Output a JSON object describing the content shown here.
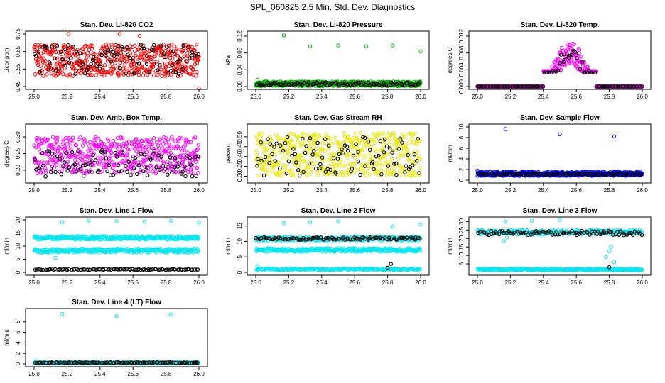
{
  "figure": {
    "title": "SPL_060825  2.5 Min. Std. Dev. Diagnostics"
  },
  "chart_data": [
    {
      "type": "scatter",
      "title": "Stan. Dev. Li-820 CO2",
      "ylabel": "Licor ppm",
      "xlim": [
        25.0,
        26.0
      ],
      "ylim": [
        0.45,
        0.75
      ],
      "xticks": [
        "25.0",
        "25.2",
        "25.4",
        "25.6",
        "25.8",
        "26.0"
      ],
      "yticks": [
        "0.45",
        "0.55",
        "0.65",
        "0.75"
      ],
      "ytick_values": [
        0.45,
        0.55,
        0.65,
        0.75
      ],
      "series": [
        {
          "name": "primary",
          "color": "#ff0000",
          "pattern": "band",
          "lo": 0.51,
          "hi": 0.69,
          "count": 520
        },
        {
          "name": "primary-outliers",
          "color": "#ff0000",
          "pattern": "points",
          "x": [
            25.21,
            25.52,
            25.64,
            26.0
          ],
          "y": [
            0.75,
            0.75,
            0.74,
            0.44
          ]
        },
        {
          "name": "secondary",
          "color": "#000000",
          "pattern": "band",
          "lo": 0.52,
          "hi": 0.69,
          "count": 95
        }
      ]
    },
    {
      "type": "scatter",
      "title": "Stan. Dev. Li-820 Pressure",
      "ylabel": "kPa",
      "xlim": [
        25.0,
        26.0
      ],
      "ylim": [
        0.0,
        0.125
      ],
      "xticks": [
        "25.0",
        "25.2",
        "25.4",
        "25.6",
        "25.8",
        "26.0"
      ],
      "yticks": [
        "0.00",
        "0.04",
        "0.08",
        "0.12"
      ],
      "ytick_values": [
        0.0,
        0.04,
        0.08,
        0.12
      ],
      "series": [
        {
          "name": "primary",
          "color": "#00b000",
          "pattern": "band",
          "lo": 0.001,
          "hi": 0.012,
          "count": 520
        },
        {
          "name": "primary-outliers",
          "color": "#00b000",
          "pattern": "points",
          "x": [
            25.01,
            25.17,
            25.33,
            25.5,
            25.67,
            25.83,
            26.0
          ],
          "y": [
            0.016,
            0.122,
            0.096,
            0.098,
            0.096,
            0.098,
            0.084
          ]
        },
        {
          "name": "secondary",
          "color": "#000000",
          "pattern": "band",
          "lo": 0.002,
          "hi": 0.01,
          "count": 95
        }
      ]
    },
    {
      "type": "scatter",
      "title": "Stan. Dev. Li-820 Temp.",
      "ylabel": "degrees C",
      "xlim": [
        25.0,
        26.0
      ],
      "ylim": [
        0.0,
        0.0125
      ],
      "xticks": [
        "25.0",
        "25.2",
        "25.4",
        "25.6",
        "25.8",
        "26.0"
      ],
      "yticks": [
        "0.000",
        "0.004",
        "0.008",
        "0.012"
      ],
      "ytick_values": [
        0.0,
        0.004,
        0.008,
        0.012
      ],
      "series": [
        {
          "name": "primary",
          "color": "#ff00ff",
          "pattern": "hump",
          "lo": 0.0,
          "hi": 0.0105,
          "start": 25.4,
          "end": 25.72,
          "count": 520
        },
        {
          "name": "secondary",
          "color": "#000000",
          "pattern": "hump",
          "lo": 0.0,
          "hi": 0.0095,
          "start": 25.4,
          "end": 25.72,
          "count": 95
        }
      ]
    },
    {
      "type": "scatter",
      "title": "Stan. Dev. Amb. Box Temp.",
      "ylabel": "degrees C",
      "xlim": [
        25.0,
        26.0
      ],
      "ylim": [
        0.17,
        0.33
      ],
      "xticks": [
        "25.0",
        "25.2",
        "25.4",
        "25.6",
        "25.8",
        "26.0"
      ],
      "yticks": [
        "0.20",
        "0.25",
        "0.30"
      ],
      "ytick_values": [
        0.2,
        0.25,
        0.3
      ],
      "series": [
        {
          "name": "primary",
          "color": "#ff00ff",
          "pattern": "band",
          "lo": 0.19,
          "hi": 0.3,
          "count": 520
        },
        {
          "name": "secondary",
          "color": "#000000",
          "pattern": "band",
          "lo": 0.18,
          "hi": 0.26,
          "count": 95
        }
      ]
    },
    {
      "type": "scatter",
      "title": "Stan. Dev. Gas Stream RH",
      "ylabel": "percent",
      "xlim": [
        25.0,
        26.0
      ],
      "ylim": [
        0.28,
        0.55
      ],
      "xticks": [
        "25.0",
        "25.2",
        "25.4",
        "25.6",
        "25.8",
        "26.0"
      ],
      "yticks": [
        "0.30",
        "0.35",
        "0.40",
        "0.45",
        "0.50"
      ],
      "ytick_values": [
        0.3,
        0.35,
        0.4,
        0.45,
        0.5
      ],
      "series": [
        {
          "name": "primary",
          "color": "#e8e800",
          "pattern": "band",
          "lo": 0.3,
          "hi": 0.52,
          "count": 520
        },
        {
          "name": "secondary",
          "color": "#000000",
          "pattern": "band",
          "lo": 0.3,
          "hi": 0.5,
          "count": 95
        }
      ]
    },
    {
      "type": "scatter",
      "title": "Stan. Dev. Sample Flow",
      "ylabel": "ml/min",
      "xlim": [
        25.0,
        26.0
      ],
      "ylim": [
        0,
        10
      ],
      "xticks": [
        "25.0",
        "25.2",
        "25.4",
        "25.6",
        "25.8",
        "26.0"
      ],
      "yticks": [
        "0",
        "2",
        "4",
        "6",
        "8",
        "10"
      ],
      "ytick_values": [
        0,
        2,
        4,
        6,
        8,
        10
      ],
      "series": [
        {
          "name": "primary",
          "color": "#0000ff",
          "pattern": "band",
          "lo": 0.8,
          "hi": 1.6,
          "count": 520
        },
        {
          "name": "primary-outliers",
          "color": "#0000ff",
          "pattern": "points",
          "x": [
            25.0,
            25.17,
            25.5,
            25.83
          ],
          "y": [
            1.8,
            9.6,
            8.6,
            8.2
          ]
        },
        {
          "name": "secondary",
          "color": "#000000",
          "pattern": "band",
          "lo": 0.9,
          "hi": 1.4,
          "count": 95
        }
      ]
    },
    {
      "type": "scatter",
      "title": "Stan. Dev. Line 1 Flow",
      "ylabel": "ml/min",
      "xlim": [
        25.0,
        26.0
      ],
      "ylim": [
        0,
        20
      ],
      "xticks": [
        "25.0",
        "25.2",
        "25.4",
        "25.6",
        "25.8",
        "26.0"
      ],
      "yticks": [
        "0",
        "5",
        "10",
        "15",
        "20"
      ],
      "ytick_values": [
        0,
        5,
        10,
        15,
        20
      ],
      "series": [
        {
          "name": "primary-upper",
          "color": "#00e5ee",
          "pattern": "band",
          "lo": 12.5,
          "hi": 13.8,
          "count": 300
        },
        {
          "name": "primary-middle",
          "color": "#00e5ee",
          "pattern": "band",
          "lo": 7.5,
          "hi": 9.0,
          "count": 300
        },
        {
          "name": "primary-outliers",
          "color": "#00e5ee",
          "pattern": "points",
          "x": [
            25.17,
            25.33,
            25.5,
            25.67,
            25.83,
            26.0,
            25.13
          ],
          "y": [
            19.2,
            19.7,
            19.5,
            19.3,
            19.6,
            19.0,
            5.5
          ]
        },
        {
          "name": "secondary",
          "color": "#000000",
          "pattern": "band",
          "lo": 0.9,
          "hi": 1.3,
          "count": 95
        }
      ]
    },
    {
      "type": "scatter",
      "title": "Stan. Dev. Line 2 Flow",
      "ylabel": "ml/min",
      "xlim": [
        25.0,
        26.0
      ],
      "ylim": [
        0,
        17
      ],
      "xticks": [
        "25.0",
        "25.2",
        "25.4",
        "25.6",
        "25.8",
        "26.0"
      ],
      "yticks": [
        "0",
        "5",
        "10",
        "15"
      ],
      "ytick_values": [
        0,
        5,
        10,
        15
      ],
      "series": [
        {
          "name": "primary-upper",
          "color": "#00e5ee",
          "pattern": "band",
          "lo": 10.3,
          "hi": 11.6,
          "count": 300
        },
        {
          "name": "primary-middle",
          "color": "#00e5ee",
          "pattern": "band",
          "lo": 6.7,
          "hi": 7.8,
          "count": 300
        },
        {
          "name": "primary-lower",
          "color": "#00e5ee",
          "pattern": "band",
          "lo": 0.7,
          "hi": 1.3,
          "count": 200
        },
        {
          "name": "primary-outliers",
          "color": "#00e5ee",
          "pattern": "points",
          "x": [
            25.01,
            25.17,
            25.33,
            25.5,
            25.83,
            26.0
          ],
          "y": [
            2.0,
            16.0,
            16.3,
            16.5,
            14.8,
            15.5
          ]
        },
        {
          "name": "secondary",
          "color": "#000000",
          "pattern": "band",
          "lo": 10.5,
          "hi": 11.3,
          "count": 95
        },
        {
          "name": "secondary-outliers",
          "color": "#000000",
          "pattern": "points",
          "x": [
            25.8,
            25.82
          ],
          "y": [
            1.5,
            2.7
          ]
        }
      ]
    },
    {
      "type": "scatter",
      "title": "Stan. Dev. Line 3 Flow",
      "ylabel": "ml/min",
      "xlim": [
        25.0,
        26.0
      ],
      "ylim": [
        0,
        31
      ],
      "xticks": [
        "25.0",
        "25.2",
        "25.4",
        "25.6",
        "25.8",
        "26.0"
      ],
      "yticks": [
        "5",
        "10",
        "15",
        "20",
        "25",
        "30"
      ],
      "ytick_values": [
        5,
        10,
        15,
        20,
        25,
        30
      ],
      "series": [
        {
          "name": "primary-upper",
          "color": "#00e5ee",
          "pattern": "band",
          "lo": 22.5,
          "hi": 25.0,
          "count": 300
        },
        {
          "name": "primary-lower",
          "color": "#00e5ee",
          "pattern": "band",
          "lo": 1.2,
          "hi": 2.3,
          "count": 300
        },
        {
          "name": "primary-outliers",
          "color": "#00e5ee",
          "pattern": "points",
          "x": [
            25.17,
            25.33,
            25.5,
            25.16,
            25.18,
            25.78,
            25.8,
            25.81,
            25.83
          ],
          "y": [
            30.0,
            30.5,
            31.0,
            18.5,
            20.5,
            9.0,
            12.5,
            15.0,
            6.0
          ]
        },
        {
          "name": "secondary",
          "color": "#000000",
          "pattern": "band",
          "lo": 22.0,
          "hi": 24.5,
          "count": 95
        },
        {
          "name": "secondary-outliers",
          "color": "#000000",
          "pattern": "points",
          "x": [
            25.8
          ],
          "y": [
            3.0
          ]
        }
      ]
    },
    {
      "type": "scatter",
      "title": "Stan. Dev. Line 4 (LT) Flow",
      "ylabel": "ml/min",
      "xlim": [
        25.0,
        26.0
      ],
      "ylim": [
        0,
        10
      ],
      "xticks": [
        "25.0",
        "25.2",
        "25.4",
        "25.6",
        "25.8",
        "26.0"
      ],
      "yticks": [
        "0",
        "2",
        "4",
        "6",
        "8"
      ],
      "ytick_values": [
        0,
        2,
        4,
        6,
        8
      ],
      "series": [
        {
          "name": "primary",
          "color": "#00e5ee",
          "pattern": "band",
          "lo": 0.1,
          "hi": 0.35,
          "count": 300
        },
        {
          "name": "primary-outliers",
          "color": "#00e5ee",
          "pattern": "points",
          "x": [
            25.17,
            25.5,
            25.83,
            25.01
          ],
          "y": [
            9.5,
            9.1,
            9.4,
            0.5
          ]
        },
        {
          "name": "secondary",
          "color": "#000000",
          "pattern": "band",
          "lo": 0.15,
          "hi": 0.3,
          "count": 95
        }
      ]
    }
  ]
}
